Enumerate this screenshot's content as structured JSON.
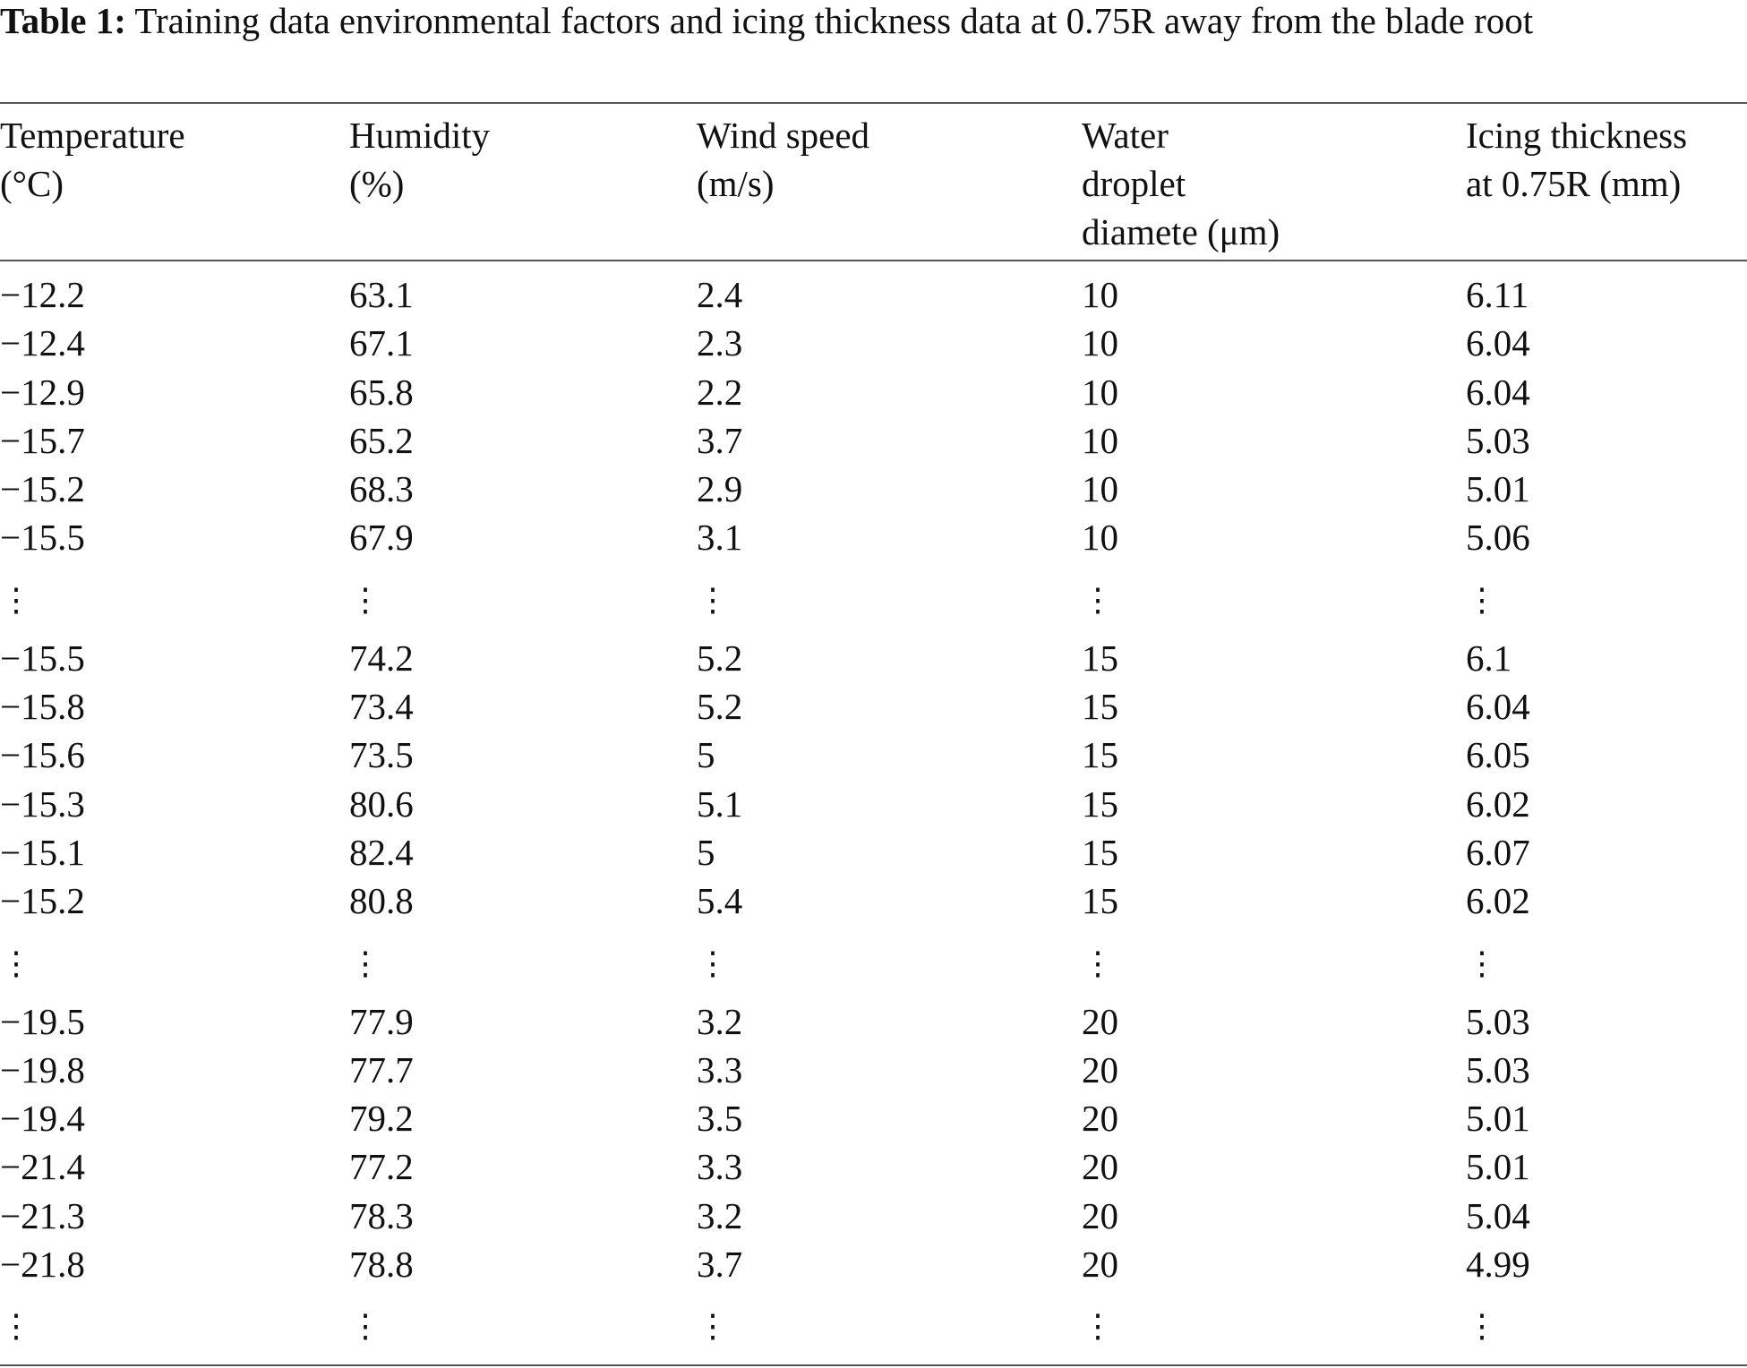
{
  "caption": {
    "label": "Table 1:",
    "text": " Training data environmental factors and icing thickness data at 0.75R away from the blade root"
  },
  "headers": [
    [
      "Temperature",
      "(°C)"
    ],
    [
      "Humidity",
      "(%)"
    ],
    [
      "Wind speed",
      "(m/s)"
    ],
    [
      "Water",
      "droplet",
      "diamete (μm)"
    ],
    [
      "Icing thickness",
      "at 0.75R (mm)"
    ]
  ],
  "ellipsis": "⋮",
  "rows": [
    [
      "−12.2",
      "63.1",
      "2.4",
      "10",
      "6.11"
    ],
    [
      "−12.4",
      "67.1",
      "2.3",
      "10",
      "6.04"
    ],
    [
      "−12.9",
      "65.8",
      "2.2",
      "10",
      "6.04"
    ],
    [
      "−15.7",
      "65.2",
      "3.7",
      "10",
      "5.03"
    ],
    [
      "−15.2",
      "68.3",
      "2.9",
      "10",
      "5.01"
    ],
    [
      "−15.5",
      "67.9",
      "3.1",
      "10",
      "5.06"
    ],
    "dots",
    [
      "−15.5",
      "74.2",
      "5.2",
      "15",
      "6.1"
    ],
    [
      "−15.8",
      "73.4",
      "5.2",
      "15",
      "6.04"
    ],
    [
      "−15.6",
      "73.5",
      "5",
      "15",
      "6.05"
    ],
    [
      "−15.3",
      "80.6",
      "5.1",
      "15",
      "6.02"
    ],
    [
      "−15.1",
      "82.4",
      "5",
      "15",
      "6.07"
    ],
    [
      "−15.2",
      "80.8",
      "5.4",
      "15",
      "6.02"
    ],
    "dots",
    [
      "−19.5",
      "77.9",
      "3.2",
      "20",
      "5.03"
    ],
    [
      "−19.8",
      "77.7",
      "3.3",
      "20",
      "5.03"
    ],
    [
      "−19.4",
      "79.2",
      "3.5",
      "20",
      "5.01"
    ],
    [
      "−21.4",
      "77.2",
      "3.3",
      "20",
      "5.01"
    ],
    [
      "−21.3",
      "78.3",
      "3.2",
      "20",
      "5.04"
    ],
    [
      "−21.8",
      "78.8",
      "3.7",
      "20",
      "4.99"
    ],
    "dots"
  ]
}
